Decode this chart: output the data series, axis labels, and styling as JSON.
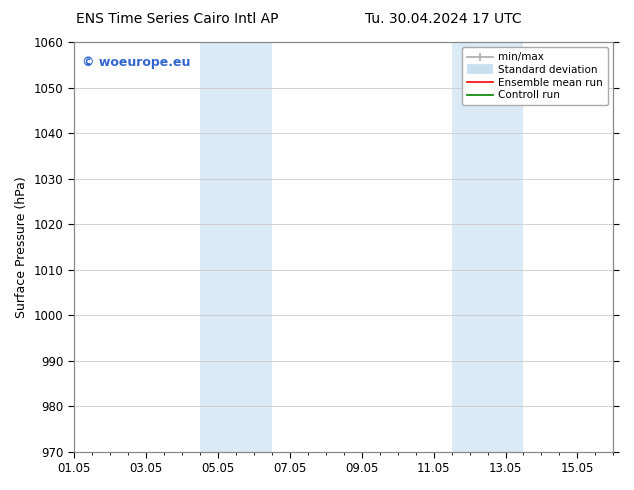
{
  "title_left": "ENS Time Series Cairo Intl AP",
  "title_right": "Tu. 30.04.2024 17 UTC",
  "ylabel": "Surface Pressure (hPa)",
  "ylim": [
    970,
    1060
  ],
  "yticks": [
    970,
    980,
    990,
    1000,
    1010,
    1020,
    1030,
    1040,
    1050,
    1060
  ],
  "xlim": [
    0,
    15
  ],
  "xtick_labels": [
    "01.05",
    "03.05",
    "05.05",
    "07.05",
    "09.05",
    "11.05",
    "13.05",
    "15.05"
  ],
  "xtick_positions": [
    0,
    2,
    4,
    6,
    8,
    10,
    12,
    14
  ],
  "shaded_bands": [
    {
      "x_start": 3.5,
      "x_end": 5.5,
      "color": "#daeaf7"
    },
    {
      "x_start": 10.5,
      "x_end": 12.5,
      "color": "#daeaf7"
    }
  ],
  "watermark_text": "© woeurope.eu",
  "watermark_color": "#3366cc",
  "legend_entries": [
    {
      "label": "min/max",
      "color": "#aaaaaa",
      "lw": 1.5
    },
    {
      "label": "Standard deviation",
      "color": "#c8dff0",
      "lw": 7
    },
    {
      "label": "Ensemble mean run",
      "color": "red",
      "lw": 1.5
    },
    {
      "label": "Controll run",
      "color": "green",
      "lw": 1.5
    }
  ],
  "bg_color": "#ffffff",
  "plot_bg_color": "#ffffff",
  "grid_color": "#cccccc",
  "title_fontsize": 10,
  "axis_fontsize": 9,
  "tick_fontsize": 8.5
}
